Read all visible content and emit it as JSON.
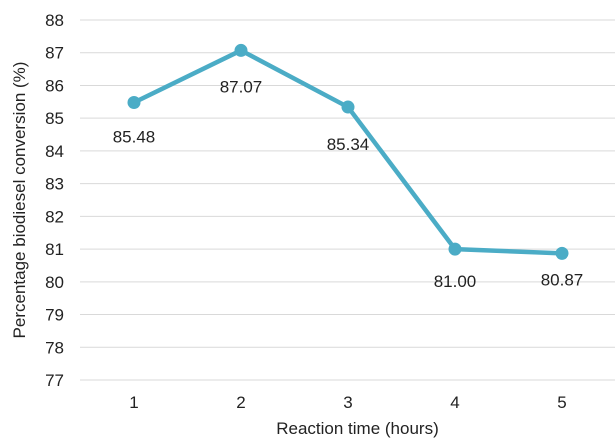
{
  "chart_data": {
    "type": "line",
    "title": "",
    "xlabel": "Reaction time (hours)",
    "ylabel": "Percentage biodiesel conversion (%)",
    "x": [
      1,
      2,
      3,
      4,
      5
    ],
    "ylim": [
      77,
      88
    ],
    "yticks": [
      77,
      78,
      79,
      80,
      81,
      82,
      83,
      84,
      85,
      86,
      87,
      88
    ],
    "grid": true,
    "legend": "none",
    "series": [
      {
        "values": [
          85.48,
          87.07,
          85.34,
          81.0,
          80.87
        ],
        "data_labels": [
          "85.48",
          "87.07",
          "85.34",
          "81.00",
          "80.87"
        ],
        "color": "#4bacc6"
      }
    ]
  }
}
